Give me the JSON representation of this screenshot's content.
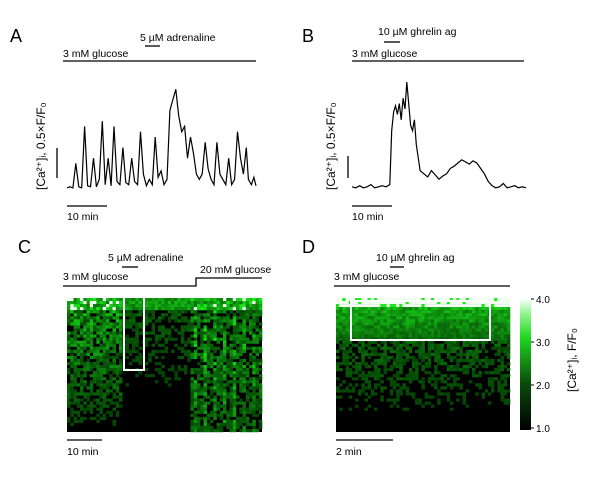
{
  "colors": {
    "trace": "#000000",
    "heatmap_low": "#000000",
    "heatmap_high": "#00ff00",
    "heatmap_top": "#ffffff",
    "box": "#ffffff"
  },
  "panels": {
    "A": {
      "letter": "A",
      "baseline_label": "3 mM glucose",
      "stim_label": "5 µM adrenaline",
      "ylabel": "[Ca²⁺]ᵢ, 0.5×F/F₀",
      "scalebar_label": "10 min"
    },
    "B": {
      "letter": "B",
      "baseline_label": "3 mM glucose",
      "stim_label": "10 µM ghrelin ag",
      "ylabel": "[Ca²⁺]ᵢ, 0.5×F/F₀",
      "scalebar_label": "10 min"
    },
    "C": {
      "letter": "C",
      "baseline_label": "3 mM glucose",
      "stim_label": "5 µM adrenaline",
      "high_glucose_label": "20 mM glucose",
      "scalebar_label": "10 min"
    },
    "D": {
      "letter": "D",
      "baseline_label": "3 mM glucose",
      "stim_label": "10 µM ghrelin ag",
      "scalebar_label": "2 min"
    }
  },
  "colorbar": {
    "label": "[Ca²⁺]ᵢ, F/F₀",
    "ticks": [
      "4.0",
      "3.0",
      "2.0",
      "1.0"
    ]
  },
  "chart_data": [
    {
      "type": "line",
      "panel": "A",
      "x_unit": "min",
      "x": [
        0,
        0.7,
        1.4,
        2.1,
        2.8,
        3.5,
        4.2,
        4.9,
        5.6,
        6.3,
        7,
        7.7,
        8.4,
        9.1,
        9.8,
        10.5,
        11.2,
        11.9,
        12.6,
        13.3,
        14,
        14.7,
        15.4,
        16.1,
        16.8,
        17.5,
        18.2,
        18.9,
        19.6,
        20.3,
        21,
        21.7,
        22.4,
        23.1,
        23.8,
        24.5,
        25.2,
        25.9,
        26.6,
        27.3,
        28,
        28.7,
        29.4,
        30.1,
        30.8,
        31.5,
        32.2,
        32.9,
        33.6,
        34.3,
        35,
        35.7,
        36.4,
        37.1,
        37.8,
        38.5,
        39.2,
        39.9,
        40.6,
        41.3,
        42,
        42.7,
        43.2,
        43.9,
        44.5,
        45
      ],
      "values": [
        0.02,
        0.03,
        0.02,
        0.25,
        0.03,
        0.02,
        0.6,
        0.04,
        0.03,
        0.3,
        0.03,
        0.1,
        0.65,
        0.05,
        0.3,
        0.04,
        0.6,
        0.08,
        0.05,
        0.4,
        0.07,
        0.05,
        0.3,
        0.08,
        0.05,
        0.55,
        0.15,
        0.04,
        0.1,
        0.05,
        0.5,
        0.12,
        0.18,
        0.05,
        0.1,
        0.75,
        0.85,
        0.95,
        0.7,
        0.55,
        0.6,
        0.3,
        0.5,
        0.35,
        0.15,
        0.1,
        0.15,
        0.45,
        0.2,
        0.1,
        0.05,
        0.45,
        0.15,
        0.1,
        0.05,
        0.3,
        0.05,
        0.1,
        0.55,
        0.3,
        0.15,
        0.4,
        0.1,
        0.05,
        0.12,
        0.04
      ],
      "ylim": [
        0,
        1
      ]
    },
    {
      "type": "line",
      "panel": "B",
      "x_unit": "min",
      "x": [
        0,
        1,
        2,
        3,
        4,
        5,
        6,
        7,
        8,
        9,
        10,
        10.5,
        11,
        11.5,
        12,
        12.5,
        13,
        13.5,
        14,
        14.5,
        15,
        15.5,
        16,
        16.5,
        17,
        17.5,
        18,
        19,
        20,
        21,
        22,
        23,
        24,
        25,
        26,
        27,
        28,
        29,
        30,
        31,
        32,
        33,
        34,
        35,
        36,
        37,
        38,
        39,
        40,
        41,
        42,
        43,
        44,
        45,
        46
      ],
      "values": [
        0.03,
        0.02,
        0.04,
        0.02,
        0.03,
        0.05,
        0.02,
        0.03,
        0.04,
        0.03,
        0.05,
        0.55,
        0.72,
        0.78,
        0.7,
        0.8,
        0.65,
        0.85,
        0.75,
        1.0,
        0.8,
        0.6,
        0.55,
        0.65,
        0.42,
        0.3,
        0.18,
        0.15,
        0.12,
        0.18,
        0.14,
        0.1,
        0.13,
        0.15,
        0.2,
        0.22,
        0.25,
        0.28,
        0.26,
        0.24,
        0.27,
        0.25,
        0.2,
        0.15,
        0.08,
        0.04,
        0.02,
        0.03,
        0.06,
        0.02,
        0.03,
        0.04,
        0.02,
        0.03,
        0.02
      ],
      "ylim": [
        0,
        1
      ]
    },
    {
      "type": "heatmap",
      "panel": "C",
      "xlabel": "",
      "ylabel": "",
      "vmin": 1.0,
      "vmax": 4.0
    },
    {
      "type": "heatmap",
      "panel": "D",
      "xlabel": "",
      "ylabel": "",
      "vmin": 1.0,
      "vmax": 4.0
    }
  ]
}
